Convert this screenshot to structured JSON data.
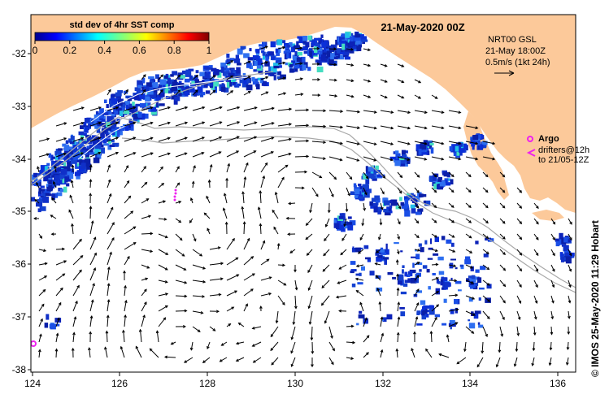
{
  "map": {
    "title": "21-May-2020 00Z",
    "credit": "© IMOS 25-May-2020 11:29 Hobart",
    "x_ticks": [
      "124",
      "126",
      "128",
      "130",
      "132",
      "134",
      "136"
    ],
    "y_ticks": [
      "-32",
      "-33",
      "-34",
      "-35",
      "-36",
      "-37",
      "-38"
    ],
    "colors": {
      "land": "#fcc99a",
      "contour": "#a8a8a8",
      "argo": "#ee22ee",
      "arrow": "#000000"
    }
  },
  "colorbar": {
    "label": "std dev of 4hr SST comp",
    "ticks": [
      "0",
      "0.2",
      "0.4",
      "0.6",
      "0.8",
      "1"
    ],
    "range": [
      0,
      1
    ]
  },
  "legend": {
    "product": "NRT00 GSL",
    "time": "21-May 18:00Z",
    "scale": "0.5m/s (1kt 24h)",
    "argo_label": "Argo",
    "drifters_label": "drifters@12h",
    "drifters_until": "to 21/05-12Z"
  }
}
